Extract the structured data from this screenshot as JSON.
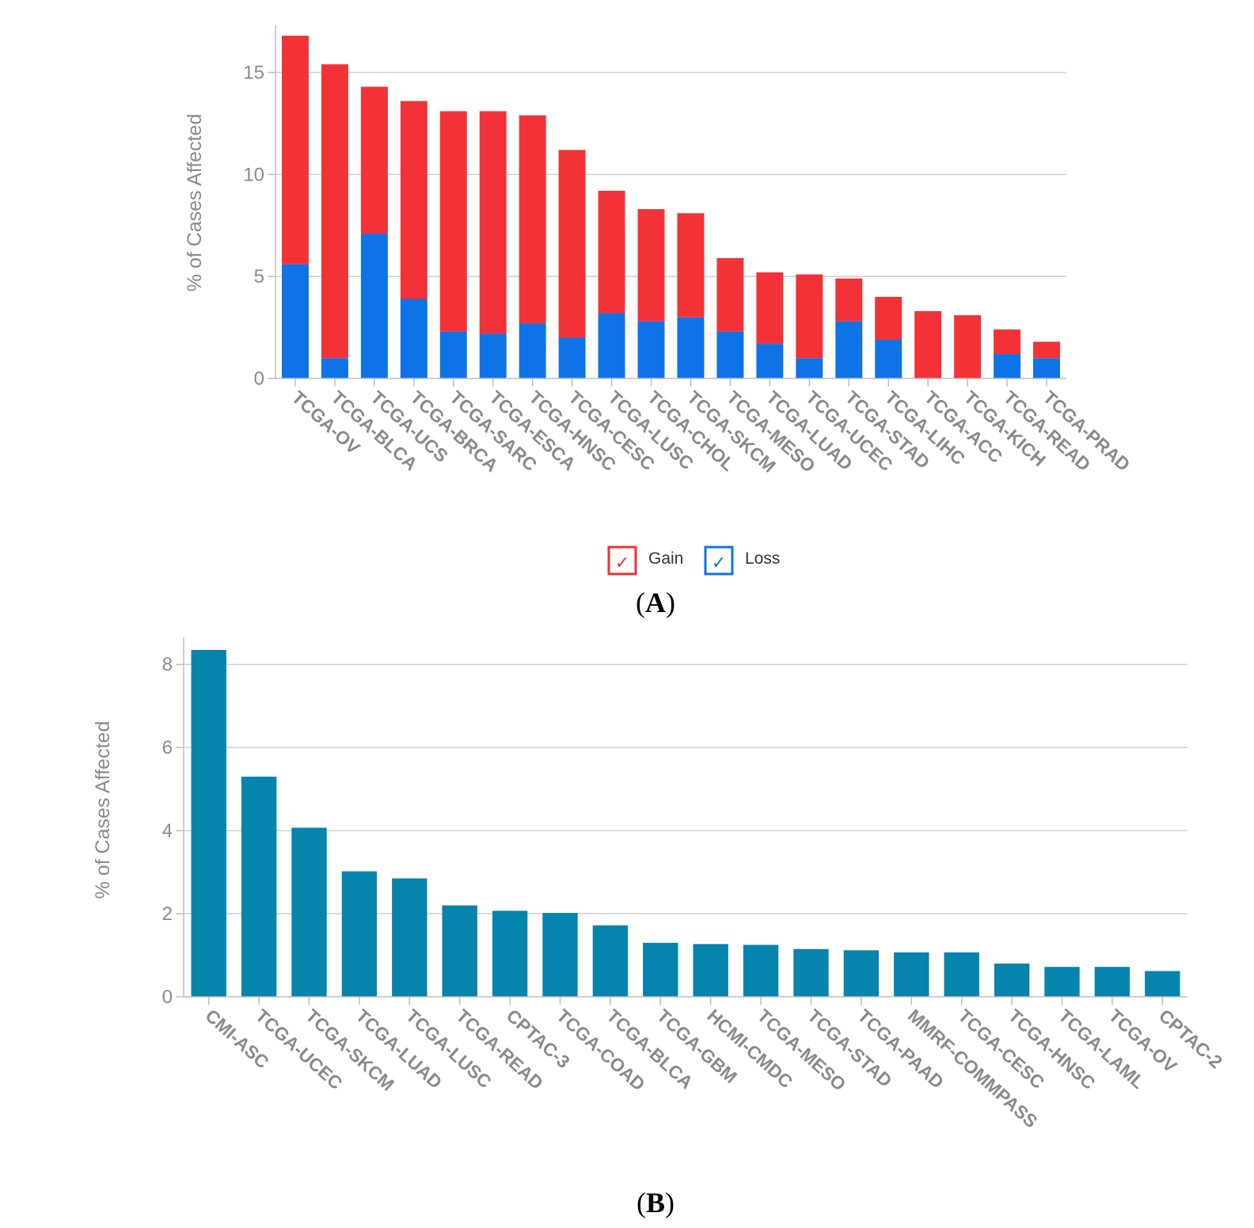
{
  "chart_data": [
    {
      "id": "A",
      "type": "bar",
      "stacked": true,
      "ylabel": "% of Cases Affected",
      "ylim": [
        0,
        17
      ],
      "yticks": [
        0,
        5,
        10,
        15
      ],
      "grid": true,
      "categories": [
        "TCGA-OV",
        "TCGA-BLCA",
        "TCGA-UCS",
        "TCGA-BRCA",
        "TCGA-SARC",
        "TCGA-ESCA",
        "TCGA-HNSC",
        "TCGA-CESC",
        "TCGA-LUSC",
        "TCGA-CHOL",
        "TCGA-SKCM",
        "TCGA-MESO",
        "TCGA-LUAD",
        "TCGA-UCEC",
        "TCGA-STAD",
        "TCGA-LIHC",
        "TCGA-ACC",
        "TCGA-KICH",
        "TCGA-READ",
        "TCGA-PRAD"
      ],
      "series": [
        {
          "name": "Loss",
          "color": "#0f73e8",
          "values": [
            5.6,
            1.0,
            7.1,
            3.9,
            2.3,
            2.2,
            2.7,
            2.0,
            3.2,
            2.8,
            3.0,
            2.3,
            1.7,
            1.0,
            2.8,
            1.9,
            0,
            0,
            1.2,
            1.0
          ]
        },
        {
          "name": "Gain",
          "color": "#f23237",
          "values": [
            11.2,
            14.4,
            7.2,
            9.7,
            10.8,
            10.9,
            10.2,
            9.2,
            6.0,
            5.5,
            5.1,
            3.6,
            3.5,
            4.1,
            2.1,
            2.1,
            3.3,
            3.1,
            1.2,
            0.8
          ]
        }
      ],
      "legend": {
        "position": "bottom-center",
        "items": [
          {
            "label": "Gain",
            "color": "#f23237",
            "mark": "✓"
          },
          {
            "label": "Loss",
            "color": "#0f73e8",
            "mark": "✓"
          }
        ]
      },
      "panel_label": {
        "open": "(",
        "letter": "A",
        "close": ")"
      }
    },
    {
      "id": "B",
      "type": "bar",
      "stacked": false,
      "ylabel": "% of Cases Affected",
      "ylim": [
        0,
        8.5
      ],
      "yticks": [
        0,
        2,
        4,
        6,
        8
      ],
      "grid": true,
      "categories": [
        "CMI-ASC",
        "TCGA-UCEC",
        "TCGA-SKCM",
        "TCGA-LUAD",
        "TCGA-LUSC",
        "TCGA-READ",
        "CPTAC-3",
        "TCGA-COAD",
        "TCGA-BLCA",
        "TCGA-GBM",
        "HCMI-CMDC",
        "TCGA-MESO",
        "TCGA-STAD",
        "TCGA-PAAD",
        "MMRF-COMMPASS",
        "TCGA-CESC",
        "TCGA-HNSC",
        "TCGA-LAML",
        "TCGA-OV",
        "CPTAC-2"
      ],
      "series": [
        {
          "name": "Cases",
          "color": "#0584ad",
          "values": [
            8.35,
            5.3,
            4.07,
            3.02,
            2.85,
            2.2,
            2.07,
            2.02,
            1.72,
            1.3,
            1.27,
            1.25,
            1.15,
            1.12,
            1.07,
            1.07,
            0.8,
            0.72,
            0.72,
            0.62
          ]
        }
      ],
      "panel_label": {
        "open": "(",
        "letter": "B",
        "close": ")"
      }
    }
  ]
}
